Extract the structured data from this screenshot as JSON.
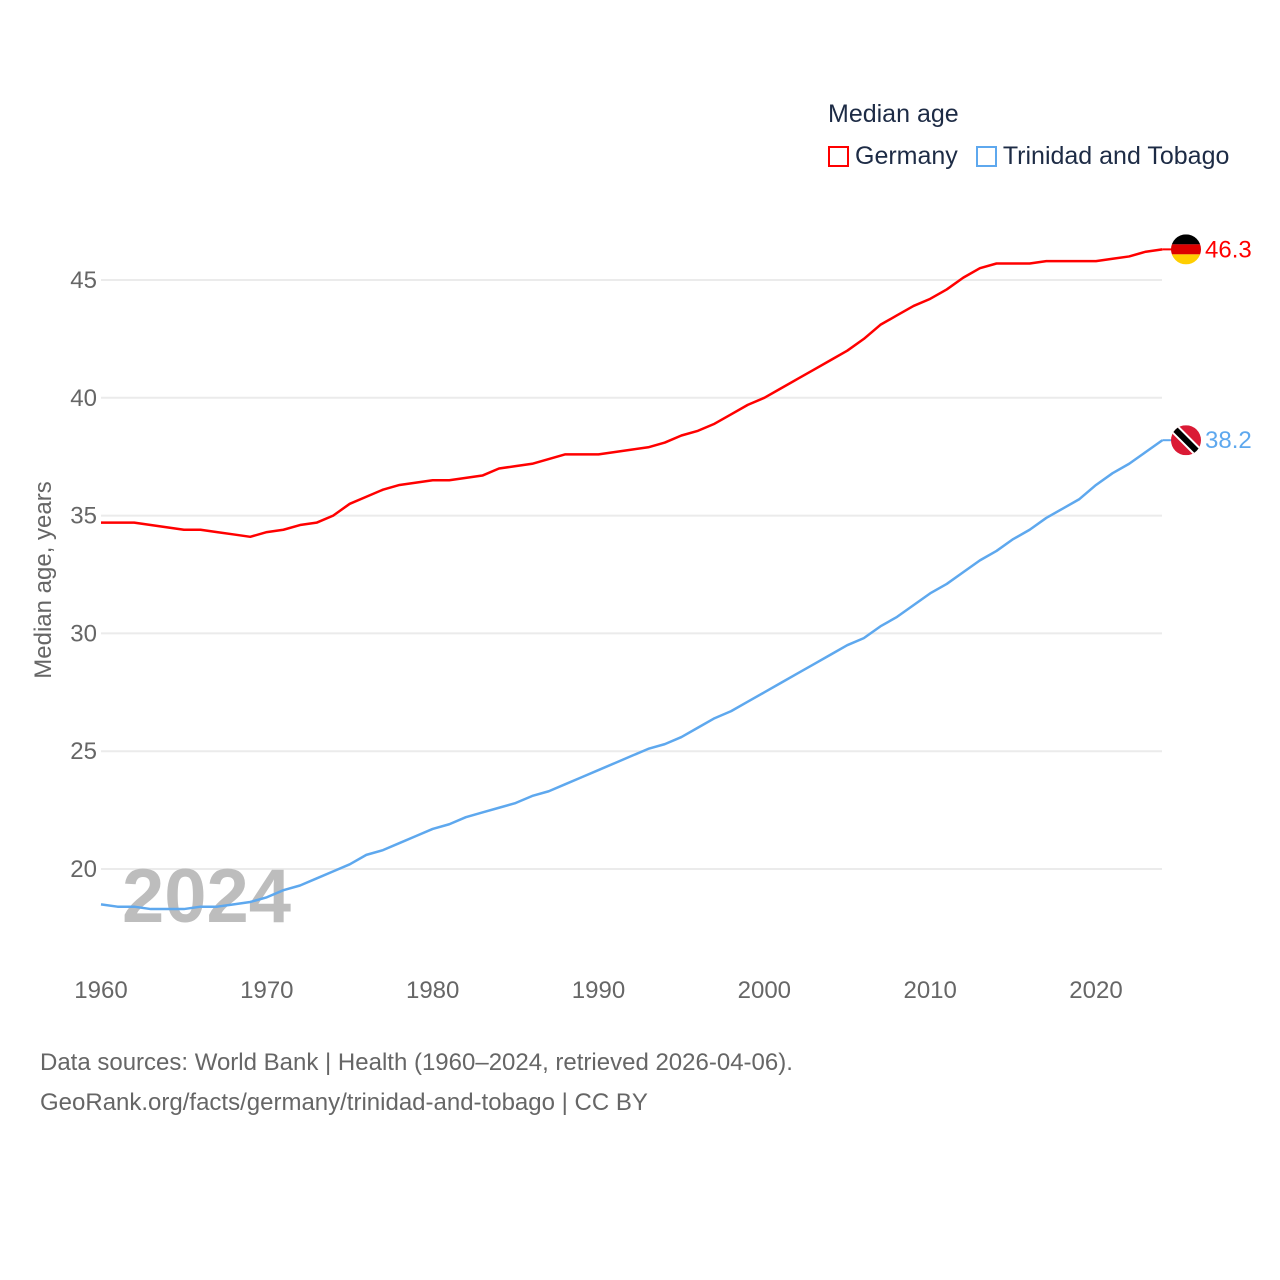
{
  "chart_data": {
    "type": "line",
    "title": "Median age",
    "ylabel": "Median age, years",
    "xlabel": "",
    "xlim": [
      1960,
      2024
    ],
    "ylim": [
      16.5,
      47
    ],
    "x_ticks": [
      "1960",
      "1970",
      "1980",
      "1990",
      "2000",
      "2010",
      "2020"
    ],
    "y_ticks": [
      "20",
      "25",
      "30",
      "35",
      "40",
      "45"
    ],
    "grid": true,
    "legend_position": "top-right",
    "year_label": "2024",
    "x": [
      1960,
      1961,
      1962,
      1963,
      1964,
      1965,
      1966,
      1967,
      1968,
      1969,
      1970,
      1971,
      1972,
      1973,
      1974,
      1975,
      1976,
      1977,
      1978,
      1979,
      1980,
      1981,
      1982,
      1983,
      1984,
      1985,
      1986,
      1987,
      1988,
      1989,
      1990,
      1991,
      1992,
      1993,
      1994,
      1995,
      1996,
      1997,
      1998,
      1999,
      2000,
      2001,
      2002,
      2003,
      2004,
      2005,
      2006,
      2007,
      2008,
      2009,
      2010,
      2011,
      2012,
      2013,
      2014,
      2015,
      2016,
      2017,
      2018,
      2019,
      2020,
      2021,
      2022,
      2023,
      2024
    ],
    "series": [
      {
        "name": "Germany",
        "color": "#ff0000",
        "end_label": "46.3",
        "values": [
          34.7,
          34.7,
          34.7,
          34.6,
          34.5,
          34.4,
          34.4,
          34.3,
          34.2,
          34.1,
          34.3,
          34.4,
          34.6,
          34.7,
          35.0,
          35.5,
          35.8,
          36.1,
          36.3,
          36.4,
          36.5,
          36.5,
          36.6,
          36.7,
          37.0,
          37.1,
          37.2,
          37.4,
          37.6,
          37.6,
          37.6,
          37.7,
          37.8,
          37.9,
          38.1,
          38.4,
          38.6,
          38.9,
          39.3,
          39.7,
          40.0,
          40.4,
          40.8,
          41.2,
          41.6,
          42.0,
          42.5,
          43.1,
          43.5,
          43.9,
          44.2,
          44.6,
          45.1,
          45.5,
          45.7,
          45.7,
          45.7,
          45.8,
          45.8,
          45.8,
          45.8,
          45.9,
          46.0,
          46.2,
          46.3
        ]
      },
      {
        "name": "Trinidad and Tobago",
        "color": "#5ea8ee",
        "end_label": "38.2",
        "values": [
          18.5,
          18.4,
          18.4,
          18.3,
          18.3,
          18.3,
          18.4,
          18.4,
          18.5,
          18.6,
          18.8,
          19.1,
          19.3,
          19.6,
          19.9,
          20.2,
          20.6,
          20.8,
          21.1,
          21.4,
          21.7,
          21.9,
          22.2,
          22.4,
          22.6,
          22.8,
          23.1,
          23.3,
          23.6,
          23.9,
          24.2,
          24.5,
          24.8,
          25.1,
          25.3,
          25.6,
          26.0,
          26.4,
          26.7,
          27.1,
          27.5,
          27.9,
          28.3,
          28.7,
          29.1,
          29.5,
          29.8,
          30.3,
          30.7,
          31.2,
          31.7,
          32.1,
          32.6,
          33.1,
          33.5,
          34.0,
          34.4,
          34.9,
          35.3,
          35.7,
          36.3,
          36.8,
          37.2,
          37.7,
          38.2
        ]
      }
    ]
  },
  "footer": {
    "line1": "Data sources: World Bank | Health (1960–2024, retrieved 2026-04-06).",
    "line2": "GeoRank.org/facts/germany/trinidad-and-tobago | CC BY"
  }
}
